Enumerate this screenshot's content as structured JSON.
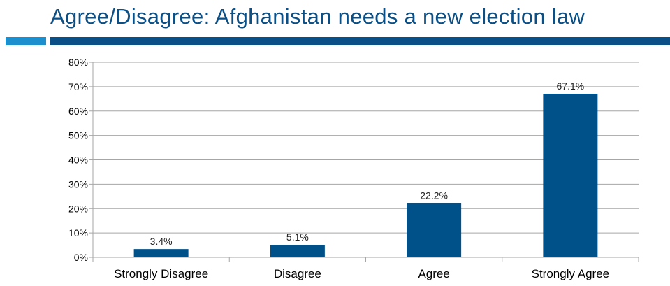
{
  "slide": {
    "title": "Agree/Disagree: Afghanistan needs a new election law"
  },
  "colors": {
    "title": "#0a4f86",
    "accent_light": "#1c8fcf",
    "accent_dark": "#0a4f86",
    "bar": "#005089",
    "grid": "#a6a6a6"
  },
  "chart_data": {
    "type": "bar",
    "title": "",
    "xlabel": "",
    "ylabel": "",
    "categories": [
      "Strongly Disagree",
      "Disagree",
      "Agree",
      "Strongly Agree"
    ],
    "values": [
      3.4,
      5.1,
      22.2,
      67.1
    ],
    "data_labels": [
      "3.4%",
      "5.1%",
      "22.2%",
      "67.1%"
    ],
    "ylim": [
      0,
      80
    ],
    "yticks": [
      0,
      10,
      20,
      30,
      40,
      50,
      60,
      70,
      80
    ],
    "ytick_labels": [
      "0%",
      "10%",
      "20%",
      "30%",
      "40%",
      "50%",
      "60%",
      "70%",
      "80%"
    ],
    "grid": true,
    "legend": "none"
  }
}
